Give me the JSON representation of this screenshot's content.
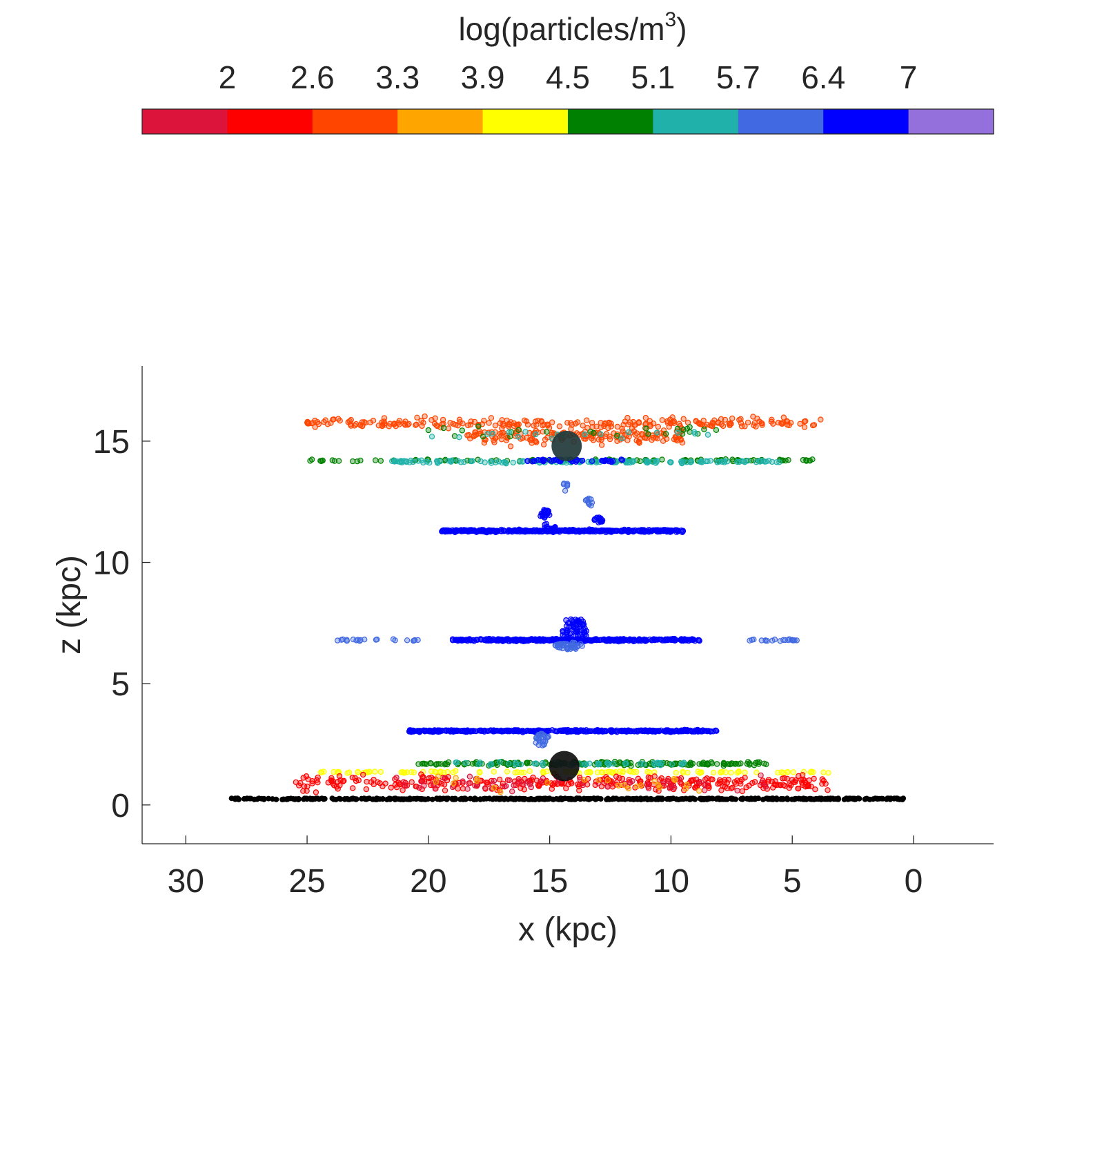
{
  "chart_data": {
    "type": "scatter",
    "title": "",
    "xlabel": "x (kpc)",
    "ylabel": "z (kpc)",
    "xlim": [
      -3.3,
      31.8
    ],
    "ylim": [
      -1.6,
      18.1
    ],
    "x_reversed": true,
    "x_ticks": [
      "30",
      "25",
      "20",
      "15",
      "10",
      "5",
      "0"
    ],
    "y_ticks": [
      "0",
      "5",
      "10",
      "15"
    ],
    "grid": false,
    "colorbar": {
      "placement": "top",
      "title": "log(particles/m",
      "title_superscript": "3",
      "title_suffix": ")",
      "tick_labels": [
        "2",
        "2.6",
        "3.3",
        "3.9",
        "4.5",
        "5.1",
        "5.7",
        "6.4",
        "7"
      ],
      "colors": [
        "#dc143c",
        "#ff0000",
        "#ff4500",
        "#ffa500",
        "#ffff00",
        "#008000",
        "#20b2aa",
        "#4169e1",
        "#0000ff",
        "#9370db"
      ]
    },
    "large_markers": [
      {
        "x": 14.3,
        "z": 14.8,
        "color": "#223a3a"
      },
      {
        "x": 14.4,
        "z": 1.6,
        "color": "#101010"
      }
    ],
    "bands": [
      {
        "name": "ground",
        "x": [
          28.2,
          0.4
        ],
        "z": 0.25,
        "spread": 0.05,
        "color_index": -1,
        "count": 520
      },
      {
        "z": 15.75,
        "x": [
          25.0,
          3.8
        ],
        "spread": 0.3,
        "color_index": 2,
        "count": 240
      },
      {
        "z": 15.2,
        "x": [
          18.5,
          9.5
        ],
        "spread": 0.45,
        "color_index": 2,
        "count": 160
      },
      {
        "z": 15.4,
        "x": [
          20,
          8
        ],
        "spread": 0.35,
        "color_index": 5,
        "count": 25
      },
      {
        "z": 15.3,
        "x": [
          20,
          8
        ],
        "spread": 0.35,
        "color_index": 6,
        "count": 20
      },
      {
        "z": 14.2,
        "x": [
          24.9,
          3.6
        ],
        "spread": 0.07,
        "color_index": 5,
        "count": 110
      },
      {
        "z": 14.15,
        "x": [
          21.5,
          5.5
        ],
        "spread": 0.09,
        "color_index": 6,
        "count": 140
      },
      {
        "z": 14.2,
        "x": [
          16.0,
          12.0
        ],
        "spread": 0.08,
        "color_index": 8,
        "count": 45
      },
      {
        "z": 11.3,
        "x": [
          19.5,
          9.5
        ],
        "spread": 0.07,
        "color_index": 8,
        "count": 380
      },
      {
        "z": 6.8,
        "x": [
          19.0,
          8.8
        ],
        "spread": 0.07,
        "color_index": 8,
        "count": 400
      },
      {
        "z": 6.8,
        "x": [
          23.9,
          20.3
        ],
        "spread": 0.05,
        "color_index": 7,
        "count": 20
      },
      {
        "z": 6.8,
        "x": [
          6.8,
          4.8
        ],
        "spread": 0.05,
        "color_index": 7,
        "count": 20
      },
      {
        "z": 3.05,
        "x": [
          20.8,
          8.1
        ],
        "spread": 0.06,
        "color_index": 8,
        "count": 400
      },
      {
        "z": 1.7,
        "x": [
          20.5,
          6.0
        ],
        "spread": 0.12,
        "color_index": 5,
        "count": 170
      },
      {
        "z": 1.7,
        "x": [
          19.0,
          9.0
        ],
        "spread": 0.12,
        "color_index": 6,
        "count": 50
      },
      {
        "z": 1.35,
        "x": [
          24.8,
          3.5
        ],
        "spread": 0.06,
        "color_index": 4,
        "count": 110
      },
      {
        "z": 0.9,
        "x": [
          25.5,
          3.5
        ],
        "spread": 0.45,
        "color_index": 1,
        "count": 320
      },
      {
        "z": 0.9,
        "x": [
          22.0,
          6.0
        ],
        "spread": 0.45,
        "color_index": 0,
        "count": 60
      },
      {
        "z": 0.9,
        "x": [
          20.0,
          8.0
        ],
        "spread": 0.45,
        "color_index": 3,
        "count": 25
      }
    ],
    "clusters": [
      {
        "x": 14.0,
        "z": 7.2,
        "radius_x": 0.55,
        "radius_z": 0.55,
        "color_index": 8,
        "count": 70
      },
      {
        "x": 14.2,
        "z": 6.55,
        "radius_x": 0.6,
        "radius_z": 0.15,
        "color_index": 7,
        "count": 40
      },
      {
        "x": 15.2,
        "z": 12.0,
        "radius_x": 0.2,
        "radius_z": 0.2,
        "color_index": 8,
        "count": 22
      },
      {
        "x": 13.0,
        "z": 11.75,
        "radius_x": 0.2,
        "radius_z": 0.12,
        "color_index": 8,
        "count": 14
      },
      {
        "x": 14.35,
        "z": 13.1,
        "radius_x": 0.1,
        "radius_z": 0.25,
        "color_index": 7,
        "count": 6
      },
      {
        "x": 13.4,
        "z": 12.45,
        "radius_x": 0.15,
        "radius_z": 0.2,
        "color_index": 7,
        "count": 10
      },
      {
        "x": 15.0,
        "z": 11.5,
        "radius_x": 0.3,
        "radius_z": 0.12,
        "color_index": 8,
        "count": 12
      },
      {
        "x": 15.3,
        "z": 2.7,
        "radius_x": 0.35,
        "radius_z": 0.25,
        "color_index": 7,
        "count": 24
      }
    ]
  }
}
